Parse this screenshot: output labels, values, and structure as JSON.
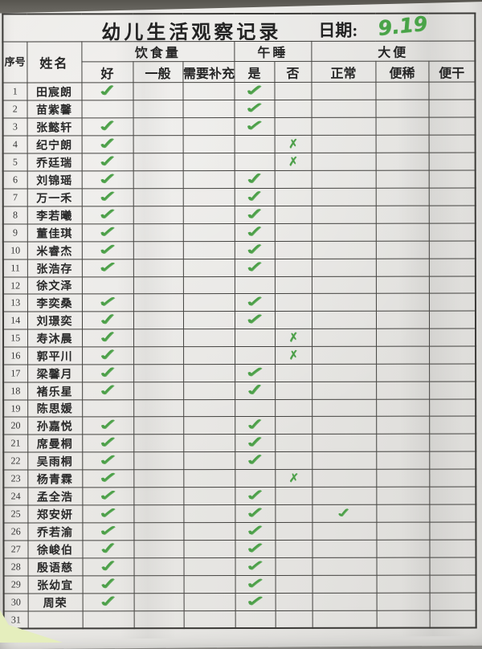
{
  "page": {
    "title": "幼儿生活观察记录",
    "date_label": "日期:",
    "date_value": "9.19"
  },
  "header": {
    "serial": "序号",
    "name": "姓名",
    "groups": [
      {
        "label": "饮食量",
        "span": 3
      },
      {
        "label": "午睡",
        "span": 2
      },
      {
        "label": "大便",
        "span": 3
      }
    ],
    "subcols": [
      "好",
      "一般",
      "需要补充",
      "是",
      "否",
      "正常",
      "便稀",
      "便干"
    ]
  },
  "glyphs": {
    "check": "✓",
    "cross": "✗"
  },
  "colors": {
    "marker_green": "#4c9f49",
    "table_line": "#43423f",
    "paper": "#e7e6e3"
  },
  "rows": [
    {
      "no": "1",
      "name": "田宸朗",
      "marks": [
        "check",
        "",
        "",
        "check",
        "",
        "",
        "",
        ""
      ]
    },
    {
      "no": "2",
      "name": "苗紫馨",
      "marks": [
        "",
        "",
        "",
        "check",
        "",
        "",
        "",
        ""
      ]
    },
    {
      "no": "3",
      "name": "张懿轩",
      "marks": [
        "check",
        "",
        "",
        "check",
        "",
        "",
        "",
        ""
      ]
    },
    {
      "no": "4",
      "name": "纪宁朗",
      "marks": [
        "check",
        "",
        "",
        "",
        "cross",
        "",
        "",
        ""
      ]
    },
    {
      "no": "5",
      "name": "乔廷瑞",
      "marks": [
        "check",
        "",
        "",
        "",
        "cross",
        "",
        "",
        ""
      ]
    },
    {
      "no": "6",
      "name": "刘锦瑶",
      "marks": [
        "check",
        "",
        "",
        "check",
        "",
        "",
        "",
        ""
      ]
    },
    {
      "no": "7",
      "name": "万一禾",
      "marks": [
        "check",
        "",
        "",
        "check",
        "",
        "",
        "",
        ""
      ]
    },
    {
      "no": "8",
      "name": "李若曦",
      "marks": [
        "check",
        "",
        "",
        "check",
        "",
        "",
        "",
        ""
      ]
    },
    {
      "no": "9",
      "name": "董佳琪",
      "marks": [
        "check",
        "",
        "",
        "check",
        "",
        "",
        "",
        ""
      ]
    },
    {
      "no": "10",
      "name": "米睿杰",
      "marks": [
        "check",
        "",
        "",
        "check",
        "",
        "",
        "",
        ""
      ]
    },
    {
      "no": "11",
      "name": "张浩存",
      "marks": [
        "check",
        "",
        "",
        "check",
        "",
        "",
        "",
        ""
      ]
    },
    {
      "no": "12",
      "name": "徐文泽",
      "marks": [
        "",
        "",
        "",
        "",
        "",
        "",
        "",
        ""
      ]
    },
    {
      "no": "13",
      "name": "李奕桑",
      "marks": [
        "check",
        "",
        "",
        "check",
        "",
        "",
        "",
        ""
      ]
    },
    {
      "no": "14",
      "name": "刘璟奕",
      "marks": [
        "check",
        "",
        "",
        "check",
        "",
        "",
        "",
        ""
      ]
    },
    {
      "no": "15",
      "name": "寿沐晨",
      "marks": [
        "check",
        "",
        "",
        "",
        "cross",
        "",
        "",
        ""
      ]
    },
    {
      "no": "16",
      "name": "郭平川",
      "marks": [
        "check",
        "",
        "",
        "",
        "cross",
        "",
        "",
        ""
      ]
    },
    {
      "no": "17",
      "name": "梁馨月",
      "marks": [
        "check",
        "",
        "",
        "check",
        "",
        "",
        "",
        ""
      ]
    },
    {
      "no": "18",
      "name": "褚乐星",
      "marks": [
        "check",
        "",
        "",
        "check",
        "",
        "",
        "",
        ""
      ]
    },
    {
      "no": "19",
      "name": "陈思媛",
      "marks": [
        "",
        "",
        "",
        "",
        "",
        "",
        "",
        ""
      ]
    },
    {
      "no": "20",
      "name": "孙嘉悦",
      "marks": [
        "check",
        "",
        "",
        "check",
        "",
        "",
        "",
        ""
      ]
    },
    {
      "no": "21",
      "name": "席曼桐",
      "marks": [
        "check",
        "",
        "",
        "check",
        "",
        "",
        "",
        ""
      ]
    },
    {
      "no": "22",
      "name": "吴雨桐",
      "marks": [
        "check",
        "",
        "",
        "check",
        "",
        "",
        "",
        ""
      ]
    },
    {
      "no": "23",
      "name": "杨青霖",
      "marks": [
        "check",
        "",
        "",
        "",
        "cross",
        "",
        "",
        ""
      ]
    },
    {
      "no": "24",
      "name": "孟全浩",
      "marks": [
        "check",
        "",
        "",
        "check",
        "",
        "",
        "",
        ""
      ]
    },
    {
      "no": "25",
      "name": "郑安妍",
      "marks": [
        "check",
        "",
        "",
        "check",
        "",
        "check",
        "",
        ""
      ]
    },
    {
      "no": "26",
      "name": "乔若渝",
      "marks": [
        "check",
        "",
        "",
        "check",
        "",
        "",
        "",
        ""
      ]
    },
    {
      "no": "27",
      "name": "徐峻伯",
      "marks": [
        "check",
        "",
        "",
        "check",
        "",
        "",
        "",
        ""
      ]
    },
    {
      "no": "28",
      "name": "殷语慈",
      "marks": [
        "check",
        "",
        "",
        "check",
        "",
        "",
        "",
        ""
      ]
    },
    {
      "no": "29",
      "name": "张幼宜",
      "marks": [
        "check",
        "",
        "",
        "check",
        "",
        "",
        "",
        ""
      ]
    },
    {
      "no": "30",
      "name": "周荣",
      "marks": [
        "check",
        "",
        "",
        "check",
        "",
        "",
        "",
        ""
      ]
    },
    {
      "no": "31",
      "name": "",
      "marks": [
        "",
        "",
        "",
        "",
        "",
        "",
        "",
        ""
      ]
    }
  ]
}
